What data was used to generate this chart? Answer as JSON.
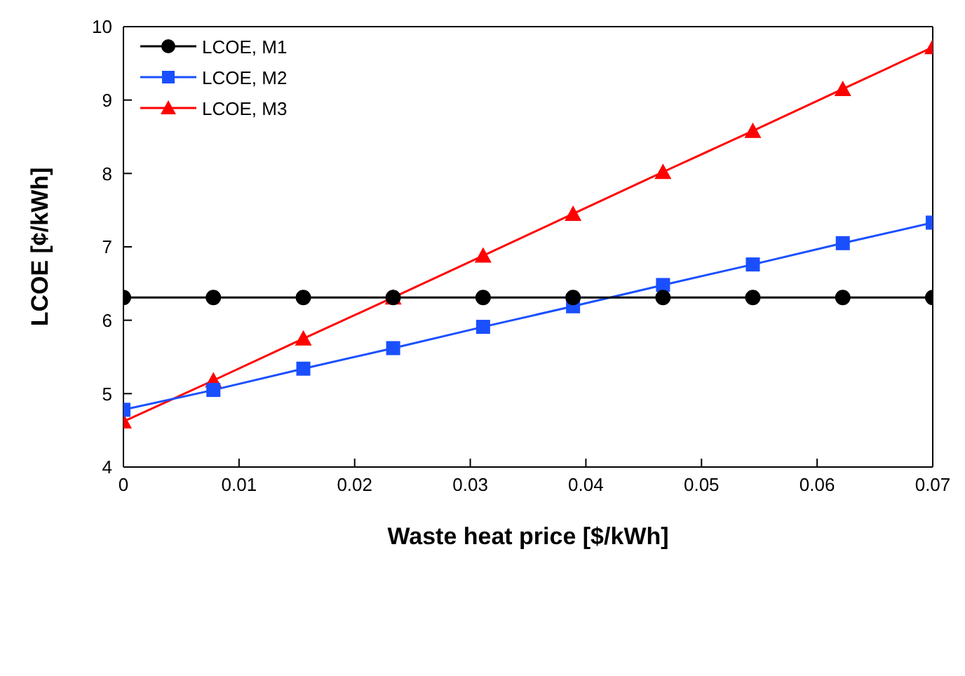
{
  "chart_data": {
    "type": "line",
    "xlabel": "Waste heat price [$/kWh]",
    "ylabel": "LCOE [¢/kWh]",
    "x": [
      0,
      0.00778,
      0.01556,
      0.02333,
      0.03111,
      0.03889,
      0.04667,
      0.05444,
      0.06222,
      0.07
    ],
    "xlim": [
      0,
      0.07
    ],
    "xticks": [
      0,
      0.01,
      0.02,
      0.03,
      0.04,
      0.05,
      0.06,
      0.07
    ],
    "ylim": [
      4,
      10
    ],
    "yticks": [
      4,
      5,
      6,
      7,
      8,
      9,
      10
    ],
    "legend": "top left",
    "line_style": "solid",
    "series": [
      {
        "name": "LCOE, M1",
        "color": "#000000",
        "marker": "circle",
        "values": [
          6.31,
          6.31,
          6.31,
          6.31,
          6.31,
          6.31,
          6.31,
          6.31,
          6.31,
          6.31
        ]
      },
      {
        "name": "LCOE, M2",
        "color": "#1a4fff",
        "marker": "square",
        "values": [
          4.78,
          5.05,
          5.34,
          5.62,
          5.91,
          6.19,
          6.48,
          6.76,
          7.05,
          7.33
        ]
      },
      {
        "name": "LCOE, M3",
        "color": "#ff0000",
        "marker": "triangle",
        "values": [
          4.62,
          5.18,
          5.75,
          6.31,
          6.88,
          7.45,
          8.02,
          8.58,
          9.15,
          9.72
        ]
      }
    ]
  }
}
